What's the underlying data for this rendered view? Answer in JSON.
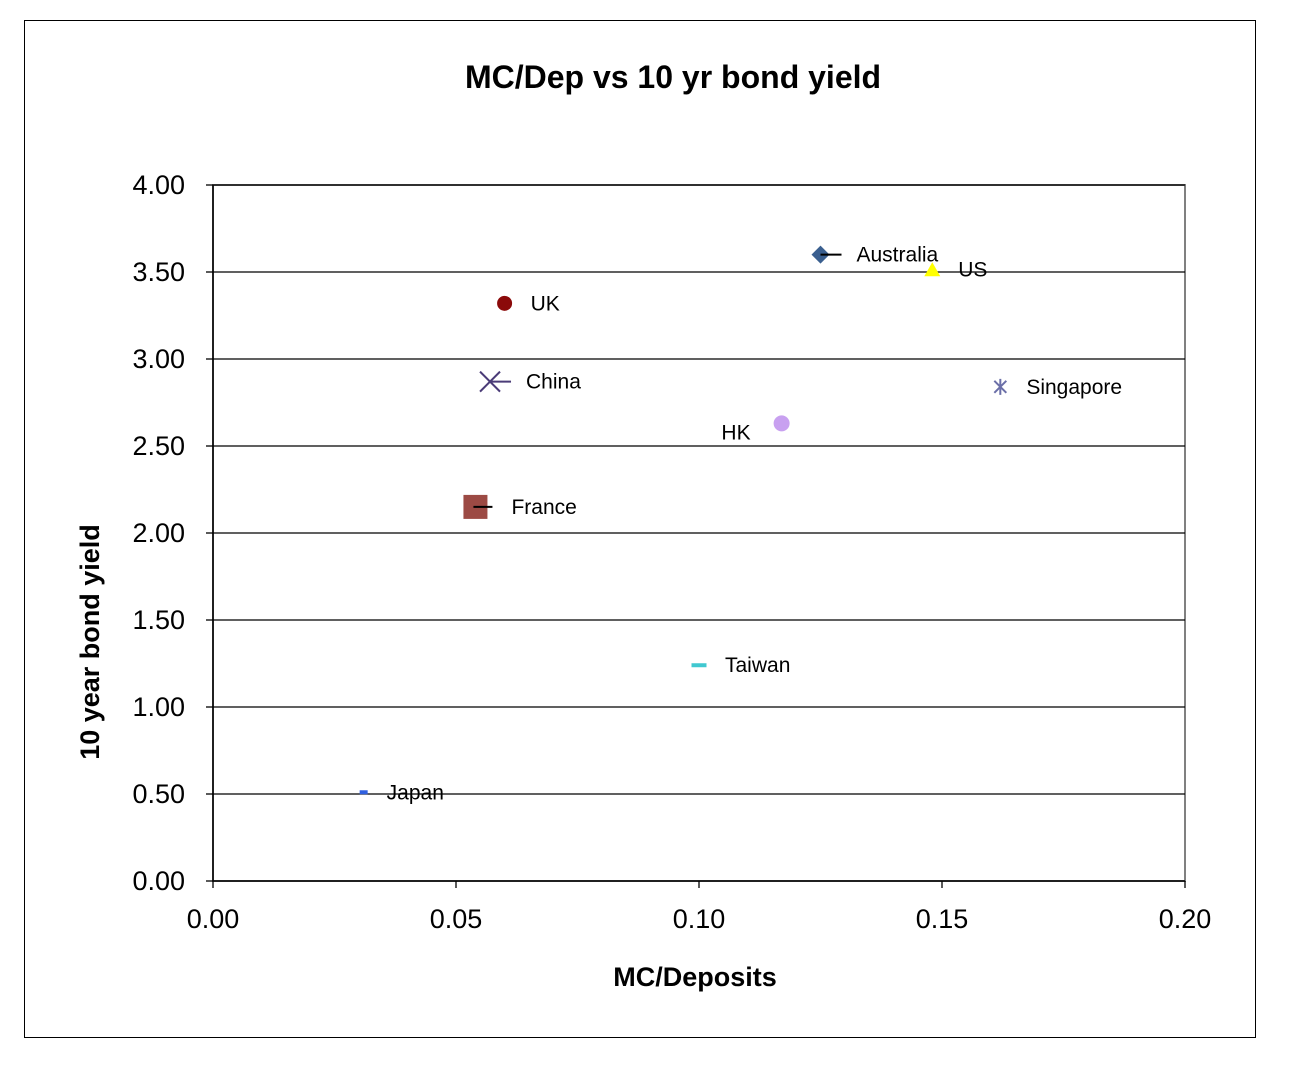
{
  "chart_data": {
    "type": "scatter",
    "title": "MC/Dep vs 10 yr bond yield",
    "xlabel": "MC/Deposits",
    "ylabel": "10 year bond yield",
    "xlim": [
      0.0,
      0.2
    ],
    "ylim": [
      0.0,
      4.0
    ],
    "x_ticks": [
      "0.00",
      "0.05",
      "0.10",
      "0.15",
      "0.20"
    ],
    "y_ticks": [
      "0.00",
      "0.50",
      "1.00",
      "1.50",
      "2.00",
      "2.50",
      "3.00",
      "3.50",
      "4.00"
    ],
    "grid": "horizontal",
    "legend": "none",
    "points": [
      {
        "label": "Australia",
        "x": 0.125,
        "y": 3.6,
        "marker": "diamond",
        "color": "#3A5F8F",
        "label_pos": "right"
      },
      {
        "label": "US",
        "x": 0.148,
        "y": 3.51,
        "marker": "triangle",
        "color": "#FFFF00",
        "label_pos": "right"
      },
      {
        "label": "UK",
        "x": 0.06,
        "y": 3.32,
        "marker": "circle",
        "color": "#8B0A0A",
        "label_pos": "right"
      },
      {
        "label": "China",
        "x": 0.057,
        "y": 2.87,
        "marker": "x",
        "color": "#4B3C78",
        "label_pos": "right"
      },
      {
        "label": "Singapore",
        "x": 0.162,
        "y": 2.84,
        "marker": "star",
        "color": "#6B6FA8",
        "label_pos": "right"
      },
      {
        "label": "HK",
        "x": 0.117,
        "y": 2.63,
        "marker": "circle",
        "color": "#C8A0F0",
        "label_pos": "left"
      },
      {
        "label": "France",
        "x": 0.054,
        "y": 2.15,
        "marker": "square",
        "color": "#9C4A44",
        "label_pos": "right"
      },
      {
        "label": "Taiwan",
        "x": 0.1,
        "y": 1.24,
        "marker": "dash",
        "color": "#40C8D0",
        "label_pos": "right"
      },
      {
        "label": "Japan",
        "x": 0.031,
        "y": 0.51,
        "marker": "dash",
        "color": "#3060E0",
        "label_pos": "right"
      }
    ]
  }
}
